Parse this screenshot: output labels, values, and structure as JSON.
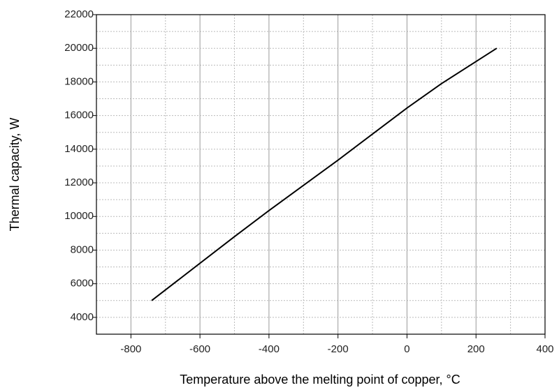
{
  "chart_data": {
    "type": "line",
    "xlabel": "Temperature above the melting point of copper,  °C",
    "ylabel": "Thermal capacity, W",
    "x": [
      -740,
      -500,
      -400,
      -200,
      0,
      100,
      260
    ],
    "series": [
      {
        "color": "#000000",
        "values": [
          5000,
          8800,
          10350,
          13350,
          16450,
          17900,
          20000
        ]
      }
    ],
    "xlim": [
      -900,
      400
    ],
    "xticks": [
      -800,
      -600,
      -400,
      -200,
      0,
      200,
      400
    ],
    "ylim": [
      3000,
      22000
    ],
    "yticks": [
      4000,
      6000,
      8000,
      10000,
      12000,
      14000,
      16000,
      18000,
      20000,
      22000
    ],
    "grid": true,
    "minor_grid": true
  }
}
